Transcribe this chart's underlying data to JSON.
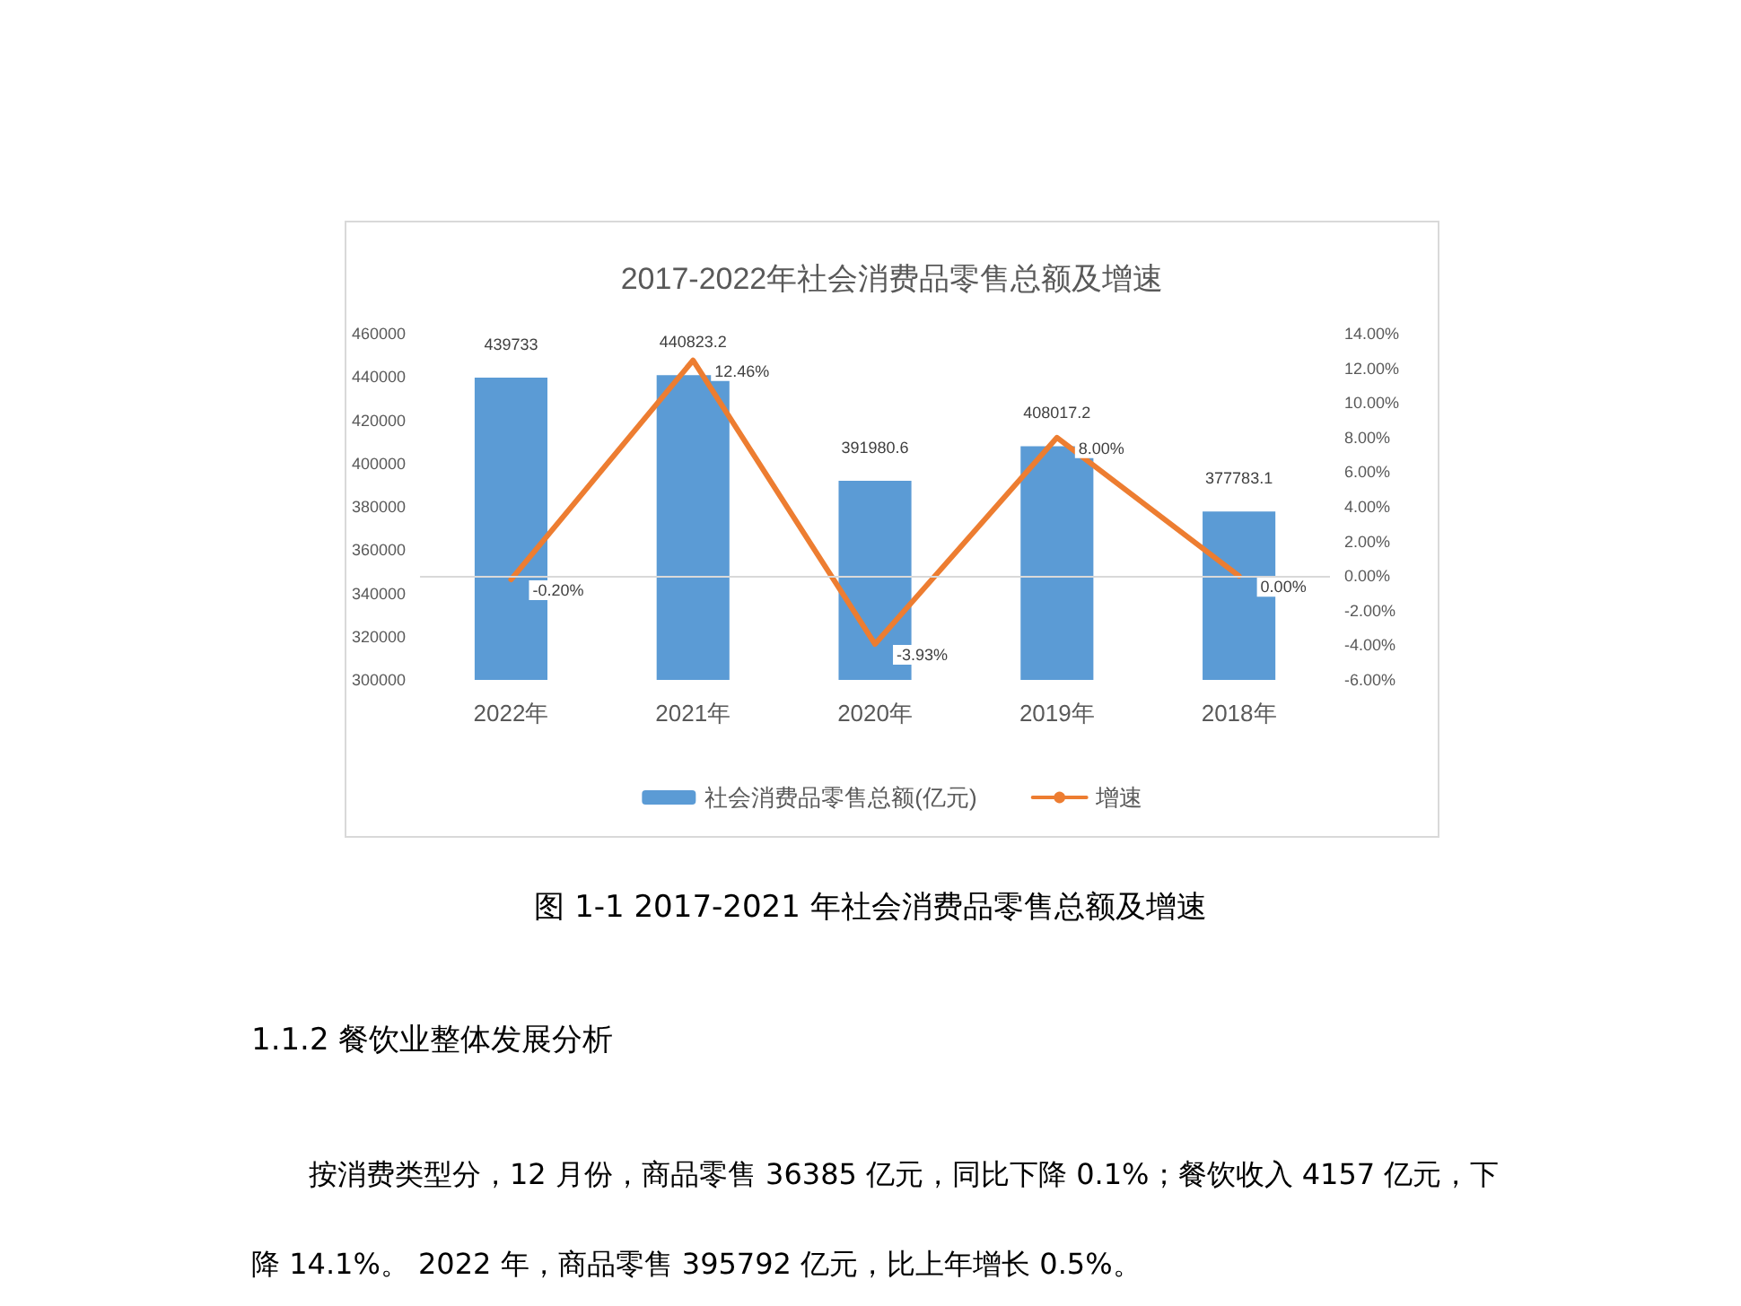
{
  "chart_data": {
    "type": "bar",
    "title": "2017-2022年社会消费品零售总额及增速",
    "categories": [
      "2022年",
      "2021年",
      "2020年",
      "2019年",
      "2018年"
    ],
    "series": [
      {
        "name": "社会消费品零售总额(亿元)",
        "color": "#5b9bd5",
        "values": [
          439733,
          440823.2,
          391980.6,
          408017.2,
          377783.1
        ]
      },
      {
        "name": "增速",
        "type": "line",
        "axis": "y2",
        "color": "#ed7d31",
        "values": [
          -0.2,
          12.46,
          -3.93,
          8.0,
          0.0
        ],
        "value_labels": [
          "-0.20%",
          "12.46%",
          "-3.93%",
          "8.00%",
          "0.00%"
        ]
      }
    ],
    "ylim": [
      300000,
      460000
    ],
    "yticks": [
      300000,
      320000,
      340000,
      360000,
      380000,
      400000,
      420000,
      440000,
      460000
    ],
    "y2lim": [
      -6,
      14
    ],
    "y2ticks": [
      {
        "value": -6,
        "label": "-6.00%"
      },
      {
        "value": -4,
        "label": "-4.00%"
      },
      {
        "value": -2,
        "label": "-2.00%"
      },
      {
        "value": 0,
        "label": "0.00%"
      },
      {
        "value": 2,
        "label": "2.00%"
      },
      {
        "value": 4,
        "label": "4.00%"
      },
      {
        "value": 6,
        "label": "6.00%"
      },
      {
        "value": 8,
        "label": "8.00%"
      },
      {
        "value": 10,
        "label": "10.00%"
      },
      {
        "value": 12,
        "label": "12.00%"
      },
      {
        "value": 14,
        "label": "14.00%"
      }
    ],
    "ref_lines": [
      {
        "axis": "y2",
        "value": 0,
        "color": "#d9d9d9"
      }
    ],
    "data_labels": true,
    "grid": false,
    "legend": "bottom",
    "marker": "none",
    "line_style": "solid",
    "annotations": [
      "图 1-1 2017-2021 年社会消费品零售总额及增速",
      "1.1.2 餐饮业整体发展分析",
      "按消费类型分，12 月份，商品零售 36385 亿元，同比下降 0.1%；餐饮收入 4157 亿元，下降 14.1%。 2022 年，商品零售 395792 亿元，比上年增长 0.5%。"
    ]
  }
}
